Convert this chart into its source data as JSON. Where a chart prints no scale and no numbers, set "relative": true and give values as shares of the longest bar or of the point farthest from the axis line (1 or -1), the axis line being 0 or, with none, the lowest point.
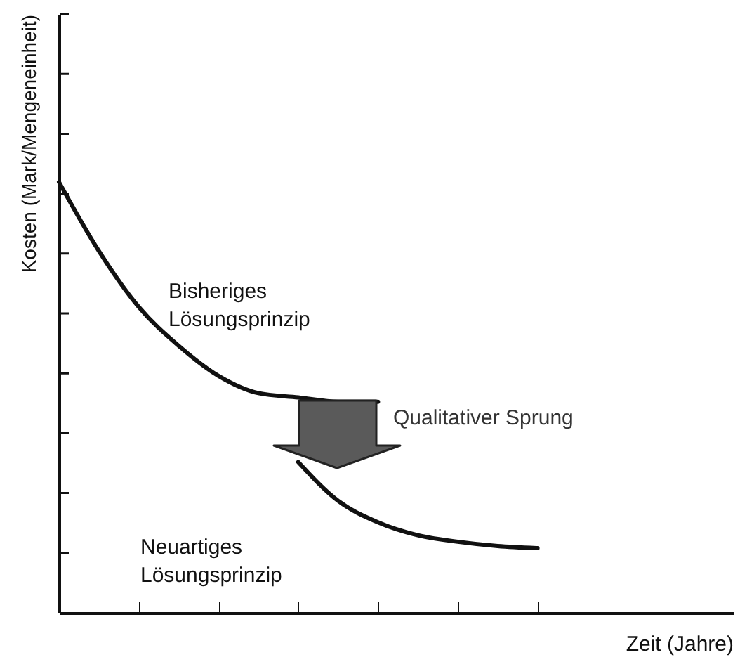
{
  "chart_data": {
    "type": "line",
    "relative": true,
    "ylabel": "Kosten (Mark/Mengeneinheit)",
    "xlabel": "Zeit (Jahre)",
    "categories": [
      null,
      null,
      null,
      null,
      null,
      null,
      null,
      null,
      null,
      null,
      null,
      null,
      null
    ],
    "series": [
      {
        "name": "Bisheriges Lösungsprinzip",
        "color": "#111111",
        "values": [
          1.0,
          0.84,
          0.71,
          0.62,
          0.55,
          0.51,
          0.5,
          0.49,
          0.49,
          null,
          null,
          null,
          null
        ]
      },
      {
        "name": "Neuartiges Lösungsprinzip",
        "color": "#111111",
        "values": [
          null,
          null,
          null,
          null,
          null,
          null,
          0.35,
          0.26,
          0.21,
          0.18,
          0.165,
          0.155,
          0.15
        ]
      }
    ],
    "annotations": [
      "Qualitativer Sprung"
    ],
    "grid": false,
    "marker": "none",
    "line_style": "solid",
    "tick_labels": false
  }
}
